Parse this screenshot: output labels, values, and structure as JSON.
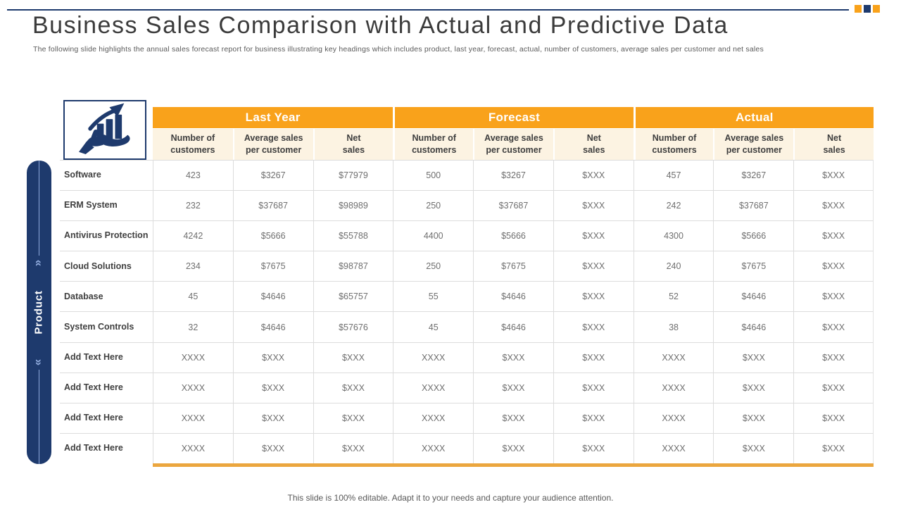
{
  "slide": {
    "title": "Business Sales Comparison with Actual and Predictive Data",
    "subtitle": "The following slide highlights the annual sales forecast report for business illustrating key headings which includes product, last year, forecast, actual, number of customers, average sales per customer and net sales",
    "footer": "This slide is 100% editable. Adapt it to your  needs and capture your audience attention."
  },
  "colors": {
    "brand_navy": "#1e3a6d",
    "accent_orange": "#f9a21b",
    "subheader_cream": "#fcf3e2",
    "underline_gold": "#eba63e",
    "chevron_blue": "#8faadc"
  },
  "icons": {
    "table_icon": "hand-holding-growth-chart-icon",
    "corner_squares": [
      "orange-square",
      "navy-square",
      "orange-square"
    ]
  },
  "sidebar": {
    "label": "Product",
    "chevron_up": "«",
    "chevron_down": "»"
  },
  "table": {
    "groups": [
      {
        "label": "Last Year"
      },
      {
        "label": "Forecast"
      },
      {
        "label": "Actual"
      }
    ],
    "subcolumns": [
      "Number of\ncustomers",
      "Average sales\nper customer",
      "Net\nsales"
    ],
    "rows": [
      {
        "product": "Software",
        "values": [
          "423",
          "$3267",
          "$77979",
          "500",
          "$3267",
          "$XXX",
          "457",
          "$3267",
          "$XXX"
        ]
      },
      {
        "product": "ERM System",
        "values": [
          "232",
          "$37687",
          "$98989",
          "250",
          "$37687",
          "$XXX",
          "242",
          "$37687",
          "$XXX"
        ]
      },
      {
        "product": "Antivirus Protection",
        "values": [
          "4242",
          "$5666",
          "$55788",
          "4400",
          "$5666",
          "$XXX",
          "4300",
          "$5666",
          "$XXX"
        ]
      },
      {
        "product": "Cloud Solutions",
        "values": [
          "234",
          "$7675",
          "$98787",
          "250",
          "$7675",
          "$XXX",
          "240",
          "$7675",
          "$XXX"
        ]
      },
      {
        "product": "Database",
        "values": [
          "45",
          "$4646",
          "$65757",
          "55",
          "$4646",
          "$XXX",
          "52",
          "$4646",
          "$XXX"
        ]
      },
      {
        "product": "System Controls",
        "values": [
          "32",
          "$4646",
          "$57676",
          "45",
          "$4646",
          "$XXX",
          "38",
          "$4646",
          "$XXX"
        ]
      },
      {
        "product": "Add Text Here",
        "values": [
          "XXXX",
          "$XXX",
          "$XXX",
          "XXXX",
          "$XXX",
          "$XXX",
          "XXXX",
          "$XXX",
          "$XXX"
        ]
      },
      {
        "product": "Add Text Here",
        "values": [
          "XXXX",
          "$XXX",
          "$XXX",
          "XXXX",
          "$XXX",
          "$XXX",
          "XXXX",
          "$XXX",
          "$XXX"
        ]
      },
      {
        "product": "Add Text Here",
        "values": [
          "XXXX",
          "$XXX",
          "$XXX",
          "XXXX",
          "$XXX",
          "$XXX",
          "XXXX",
          "$XXX",
          "$XXX"
        ]
      },
      {
        "product": "Add Text Here",
        "values": [
          "XXXX",
          "$XXX",
          "$XXX",
          "XXXX",
          "$XXX",
          "$XXX",
          "XXXX",
          "$XXX",
          "$XXX"
        ]
      }
    ]
  }
}
